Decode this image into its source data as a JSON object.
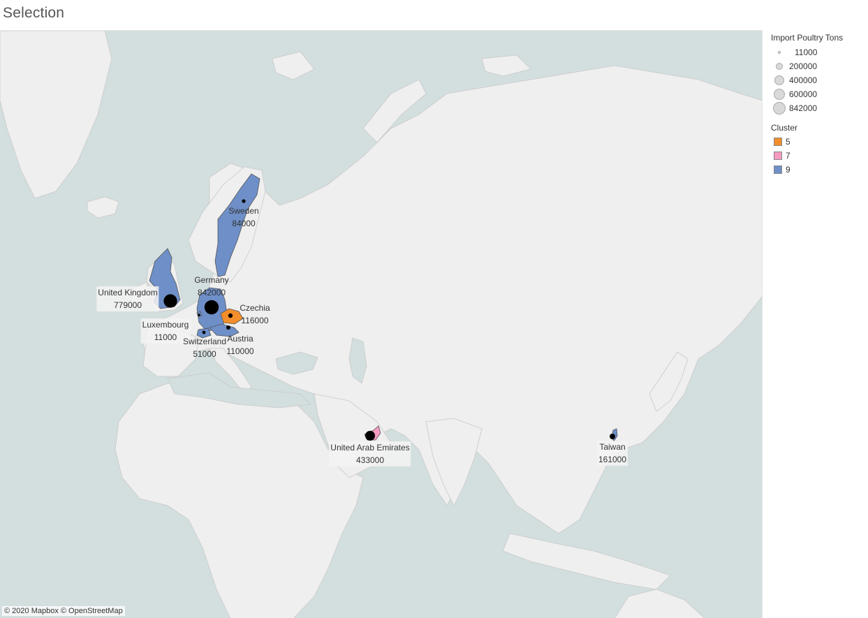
{
  "title": "Selection",
  "attribution": "© 2020 Mapbox © OpenStreetMap",
  "legend_size": {
    "title": "Import Poultry Tons",
    "items": [
      "11000",
      "200000",
      "400000",
      "600000",
      "842000"
    ]
  },
  "legend_color": {
    "title": "Cluster",
    "items": [
      {
        "label": "5",
        "color": "#f28e2b"
      },
      {
        "label": "7",
        "color": "#f59ac0"
      },
      {
        "label": "9",
        "color": "#6e8fc8"
      }
    ]
  },
  "countries": [
    {
      "name": "Sweden",
      "value": "84000",
      "cluster": "9"
    },
    {
      "name": "United Kingdom",
      "value": "779000",
      "cluster": "9"
    },
    {
      "name": "Germany",
      "value": "842000",
      "cluster": "9"
    },
    {
      "name": "Czechia",
      "value": "116000",
      "cluster": "5"
    },
    {
      "name": "Luxembourg",
      "value": "11000",
      "cluster": "9"
    },
    {
      "name": "Switzerland",
      "value": "51000",
      "cluster": "9"
    },
    {
      "name": "Austria",
      "value": "110000",
      "cluster": "9"
    },
    {
      "name": "United Arab Emirates",
      "value": "433000",
      "cluster": "7"
    },
    {
      "name": "Taiwan",
      "value": "161000",
      "cluster": "9"
    }
  ]
}
